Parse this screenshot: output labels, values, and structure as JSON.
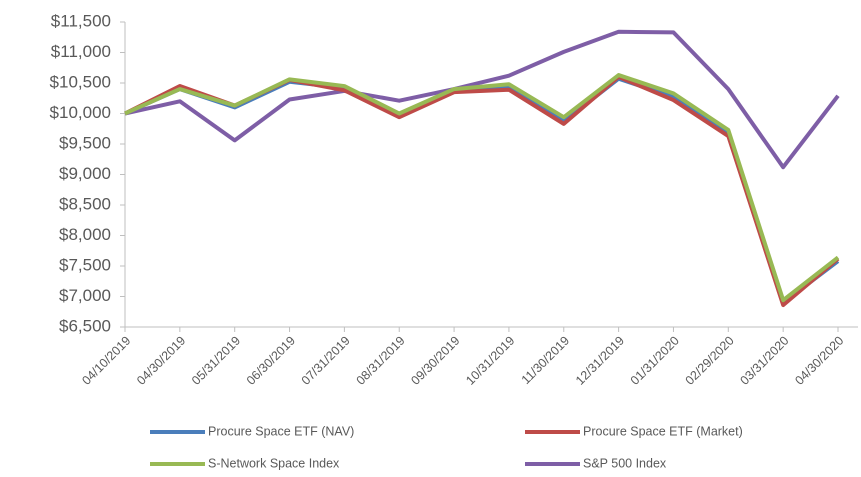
{
  "chart_data": {
    "type": "line",
    "categories": [
      "04/10/2019",
      "04/30/2019",
      "05/31/2019",
      "06/30/2019",
      "07/31/2019",
      "08/31/2019",
      "09/30/2019",
      "10/31/2019",
      "11/30/2019",
      "12/31/2019",
      "01/31/2020",
      "02/29/2020",
      "03/31/2020",
      "04/30/2020"
    ],
    "series": [
      {
        "name": "Procure Space ETF (NAV)",
        "color": "#4a7ebb",
        "values": [
          10000,
          10400,
          10100,
          10520,
          10420,
          9960,
          10380,
          10420,
          9870,
          10570,
          10270,
          9680,
          6900,
          7580
        ]
      },
      {
        "name": "Procure Space ETF (Market)",
        "color": "#be4b48",
        "values": [
          10000,
          10450,
          10130,
          10550,
          10380,
          9940,
          10350,
          10390,
          9830,
          10600,
          10220,
          9630,
          6860,
          7620
        ]
      },
      {
        "name": "S-Network Space Index",
        "color": "#98b954",
        "values": [
          10000,
          10400,
          10130,
          10560,
          10450,
          10000,
          10400,
          10480,
          9940,
          10630,
          10330,
          9730,
          6940,
          7640
        ]
      },
      {
        "name": "S&P 500 Index",
        "color": "#7e5ea6",
        "values": [
          10000,
          10200,
          9560,
          10230,
          10370,
          10210,
          10400,
          10620,
          11010,
          11340,
          11330,
          10400,
          9120,
          10290
        ]
      }
    ],
    "ylim": [
      6500,
      11500
    ],
    "yticks": [
      {
        "value": 6500,
        "label": "$6,500"
      },
      {
        "value": 7000,
        "label": "$7,000"
      },
      {
        "value": 7500,
        "label": "$7,500"
      },
      {
        "value": 8000,
        "label": "$8,000"
      },
      {
        "value": 8500,
        "label": "$8,500"
      },
      {
        "value": 9000,
        "label": "$9,000"
      },
      {
        "value": 9500,
        "label": "$9,500"
      },
      {
        "value": 10000,
        "label": "$10,000"
      },
      {
        "value": 10500,
        "label": "$10,500"
      },
      {
        "value": 11000,
        "label": "$11,000"
      },
      {
        "value": 11500,
        "label": "$11,500"
      }
    ],
    "grid": false
  }
}
